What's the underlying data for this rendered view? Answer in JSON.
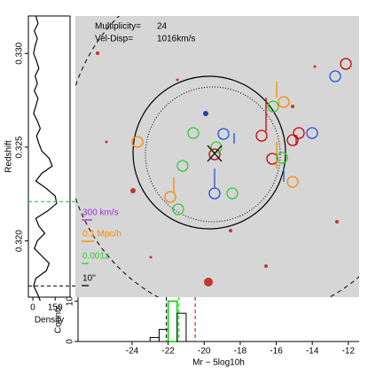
{
  "chart_data": [
    {
      "type": "line",
      "orientation": "vertical",
      "xlabel": "Density",
      "ylabel": "Redshift",
      "x": [
        0.332,
        0.3316,
        0.3312,
        0.3308,
        0.3304,
        0.33,
        0.3296,
        0.3292,
        0.3288,
        0.3284,
        0.328,
        0.3276,
        0.3272,
        0.3268,
        0.3264,
        0.326,
        0.3256,
        0.3252,
        0.3248,
        0.3244,
        0.324,
        0.3236,
        0.3232,
        0.3228,
        0.3224,
        0.322,
        0.3216,
        0.3212,
        0.3208,
        0.3204,
        0.32,
        0.3196,
        0.3192,
        0.3188,
        0.3184,
        0.318,
        0.3176,
        0.3172,
        0.3168
      ],
      "values": [
        20,
        35,
        10,
        30,
        15,
        5,
        25,
        40,
        15,
        30,
        10,
        35,
        20,
        5,
        30,
        50,
        25,
        40,
        60,
        110,
        130,
        60,
        20,
        90,
        150,
        160,
        100,
        20,
        40,
        80,
        30,
        10,
        60,
        110,
        90,
        20,
        5,
        30,
        50
      ],
      "color": "#000000",
      "xlim": [
        -30,
        250
      ],
      "xticks": [
        0,
        150
      ],
      "ylim": [
        0.317,
        0.332
      ],
      "yticks": [
        {
          "value": 0.32,
          "label": "0.320"
        },
        {
          "value": 0.325,
          "label": "0.325"
        },
        {
          "value": 0.33,
          "label": "0.330"
        }
      ],
      "hlines": [
        {
          "value": 0.3221,
          "color": "#00cc00"
        },
        {
          "value": 0.3176,
          "color": "#000000"
        }
      ]
    },
    {
      "type": "histogram",
      "xlabel": "Mr − 5log10h",
      "ylabel": "Counts",
      "bins": [
        -23,
        -22.5,
        -22,
        -21.5,
        -21
      ],
      "values": [
        1,
        3,
        10,
        7
      ],
      "color": "#000000",
      "highlight_color": "#00cc00",
      "xlim": [
        -27,
        -11.4
      ],
      "xticks": [
        -24,
        -22,
        -20,
        -18,
        -16,
        -14,
        -12
      ],
      "ylim": [
        0,
        11
      ],
      "yticks": [
        0,
        10
      ],
      "vlines": [
        {
          "value": -22.1,
          "color": "#000000"
        },
        {
          "value": -21.4,
          "color": "#00cc00"
        },
        {
          "value": -20.5,
          "color": "#cc0000"
        }
      ]
    }
  ],
  "image_panel": {
    "multiplicity_label": "Multiplicity=",
    "multiplicity": "24",
    "veldisp_label": "Vel-Disp=",
    "veldisp": "1016km/s",
    "scale_labels": [
      "300 km/s",
      "0.1 Mpc/h",
      "0.001z",
      "10''"
    ]
  }
}
